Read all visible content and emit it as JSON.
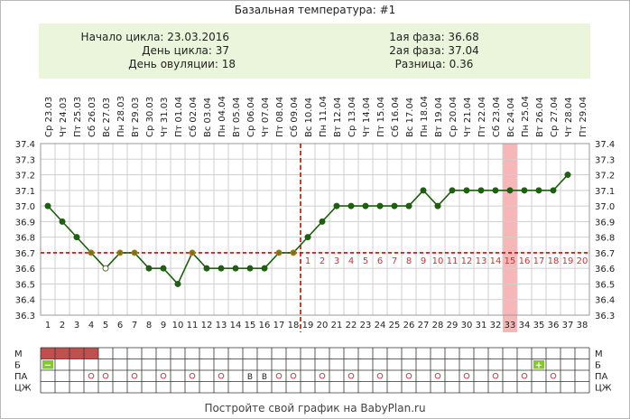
{
  "title": "Базальная температура: #1",
  "info": {
    "cycle_start": "Начало цикла: 23.03.2016",
    "cycle_day": "День цикла: 37",
    "ovulation_day": "День овуляции: 18",
    "phase1": "1ая фаза: 36.68",
    "phase2": "2ая фаза: 37.04",
    "difference": "Разница: 0.36"
  },
  "footer": "Постройте свой график на BabyPlan.ru",
  "colors": {
    "line": "#1f5f10",
    "coverline": "#dd0000",
    "highlight_day": "#f7b7b7",
    "menstruation": "#c0504d",
    "marker_green": "#7ecb2a",
    "info_bg": "#ebf5dc",
    "post_ovulation_numbers": "#cc3333"
  },
  "chart_data": {
    "type": "line",
    "title": "Базальная температура: #1",
    "x_dates": [
      "23.03",
      "24.03",
      "25.03",
      "26.03",
      "27.03",
      "28.03",
      "29.03",
      "30.03",
      "31.03",
      "01.04",
      "02.04",
      "03.04",
      "04.04",
      "05.04",
      "06.04",
      "07.04",
      "08.04",
      "09.04",
      "10.04",
      "11.04",
      "12.04",
      "13.04",
      "14.04",
      "15.04",
      "16.04",
      "17.04",
      "18.04",
      "19.04",
      "20.04",
      "21.04",
      "22.04",
      "23.04",
      "24.04",
      "25.04",
      "26.04",
      "27.04",
      "28.04",
      "29.04"
    ],
    "x_weekdays": [
      "Ср",
      "Чт",
      "Пт",
      "Сб",
      "Вс",
      "Пн",
      "Вт",
      "Ср",
      "Чт",
      "Пт",
      "Сб",
      "Вс",
      "Пн",
      "Вт",
      "Ср",
      "Чт",
      "Пт",
      "Сб",
      "Вс",
      "Пн",
      "Вт",
      "Ср",
      "Чт",
      "Пт",
      "Сб",
      "Вс",
      "Пн",
      "Вт",
      "Ср",
      "Чт",
      "Пт",
      "Сб",
      "Вс",
      "Пн",
      "Вт",
      "Ср",
      "Чт",
      "Пт"
    ],
    "x_days": [
      1,
      2,
      3,
      4,
      5,
      6,
      7,
      8,
      9,
      10,
      11,
      12,
      13,
      14,
      15,
      16,
      17,
      18,
      19,
      20,
      21,
      22,
      23,
      24,
      25,
      26,
      27,
      28,
      29,
      30,
      31,
      32,
      33,
      34,
      35,
      36,
      37,
      38
    ],
    "values": [
      37.0,
      36.9,
      36.8,
      36.7,
      36.6,
      36.7,
      36.7,
      36.6,
      36.6,
      36.5,
      36.7,
      36.6,
      36.6,
      36.6,
      36.6,
      36.6,
      36.7,
      36.7,
      36.8,
      36.9,
      37.0,
      37.0,
      37.0,
      37.0,
      37.0,
      37.0,
      37.1,
      37.0,
      37.1,
      37.1,
      37.1,
      37.1,
      37.1,
      37.1,
      37.1,
      37.1,
      37.2,
      null
    ],
    "point_style": [
      "filled",
      "filled",
      "filled",
      "orange",
      "open",
      "orange",
      "orange",
      "filled",
      "filled",
      "filled",
      "orange",
      "filled",
      "filled",
      "filled",
      "filled",
      "filled",
      "orange",
      "orange",
      "filled",
      "filled",
      "filled",
      "filled",
      "filled",
      "filled",
      "filled",
      "filled",
      "filled",
      "filled",
      "filled",
      "filled",
      "filled",
      "filled",
      "filled",
      "filled",
      "filled",
      "filled",
      "filled",
      null
    ],
    "ylim": [
      36.3,
      37.4
    ],
    "yticks": [
      36.3,
      36.4,
      36.5,
      36.6,
      36.7,
      36.8,
      36.9,
      37.0,
      37.1,
      37.2,
      37.3,
      37.4
    ],
    "coverline": 36.7,
    "ovulation_day": 18,
    "post_ovulation_labels": [
      "1",
      "2",
      "3",
      "4",
      "5",
      "6",
      "7",
      "8",
      "9",
      "10",
      "11",
      "12",
      "13",
      "14",
      "15",
      "16",
      "17",
      "18",
      "19",
      "20"
    ],
    "highlight_day": 33,
    "grid": true
  },
  "table": {
    "row_labels": [
      "М",
      "Б",
      "ПА",
      "ЦЖ"
    ],
    "menstruation_days": [
      1,
      2,
      3,
      4
    ],
    "b_markers": [
      {
        "day": 1,
        "symbol": "−"
      },
      {
        "day": 35,
        "symbol": "+"
      }
    ],
    "pa_circle_days": [
      4,
      5,
      7,
      9,
      11,
      13,
      17,
      18,
      20,
      22,
      24,
      26,
      28,
      30,
      32,
      34,
      36
    ],
    "pa_letter_marks": [
      {
        "day": 15,
        "text": "В"
      },
      {
        "day": 16,
        "text": "В"
      }
    ]
  }
}
